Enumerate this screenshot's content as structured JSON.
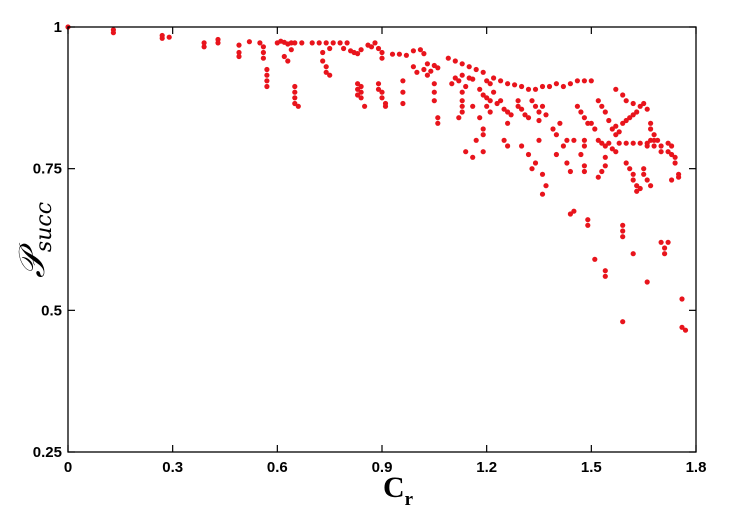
{
  "chart_data": {
    "type": "scatter",
    "title": "",
    "xlabel_main": "C",
    "xlabel_sub": "r",
    "ylabel_main": "𝒫",
    "ylabel_sub": "succ",
    "xlim": [
      0,
      1.8
    ],
    "ylim": [
      0.25,
      1
    ],
    "xticks": [
      "0",
      "0.3",
      "0.6",
      "0.9",
      "1.2",
      "1.5",
      "1.8"
    ],
    "yticks": [
      "0.25",
      "0.5",
      "0.75",
      "1"
    ],
    "marker_color": "#e8141c",
    "grid": false,
    "series": [
      {
        "points": [
          [
            0.0,
            1.0
          ],
          [
            0.13,
            0.995
          ],
          [
            0.13,
            0.99
          ],
          [
            0.27,
            0.985
          ],
          [
            0.27,
            0.98
          ],
          [
            0.29,
            0.982
          ],
          [
            0.39,
            0.972
          ],
          [
            0.39,
            0.965
          ],
          [
            0.43,
            0.978
          ],
          [
            0.43,
            0.972
          ],
          [
            0.49,
            0.968
          ],
          [
            0.49,
            0.955
          ],
          [
            0.49,
            0.948
          ],
          [
            0.52,
            0.974
          ],
          [
            0.55,
            0.972
          ],
          [
            0.56,
            0.965
          ],
          [
            0.56,
            0.955
          ],
          [
            0.56,
            0.945
          ],
          [
            0.57,
            0.925
          ],
          [
            0.57,
            0.915
          ],
          [
            0.57,
            0.905
          ],
          [
            0.57,
            0.895
          ],
          [
            0.6,
            0.972
          ],
          [
            0.61,
            0.975
          ],
          [
            0.62,
            0.973
          ],
          [
            0.63,
            0.97
          ],
          [
            0.64,
            0.972
          ],
          [
            0.65,
            0.972
          ],
          [
            0.62,
            0.948
          ],
          [
            0.63,
            0.94
          ],
          [
            0.64,
            0.96
          ],
          [
            0.65,
            0.895
          ],
          [
            0.65,
            0.885
          ],
          [
            0.65,
            0.875
          ],
          [
            0.65,
            0.865
          ],
          [
            0.66,
            0.86
          ],
          [
            0.67,
            0.972
          ],
          [
            0.7,
            0.972
          ],
          [
            0.72,
            0.972
          ],
          [
            0.74,
            0.972
          ],
          [
            0.76,
            0.972
          ],
          [
            0.78,
            0.972
          ],
          [
            0.8,
            0.972
          ],
          [
            0.73,
            0.955
          ],
          [
            0.73,
            0.94
          ],
          [
            0.74,
            0.93
          ],
          [
            0.74,
            0.92
          ],
          [
            0.75,
            0.915
          ],
          [
            0.75,
            0.962
          ],
          [
            0.79,
            0.962
          ],
          [
            0.81,
            0.958
          ],
          [
            0.82,
            0.955
          ],
          [
            0.83,
            0.953
          ],
          [
            0.84,
            0.96
          ],
          [
            0.83,
            0.9
          ],
          [
            0.83,
            0.89
          ],
          [
            0.83,
            0.88
          ],
          [
            0.84,
            0.895
          ],
          [
            0.84,
            0.885
          ],
          [
            0.84,
            0.875
          ],
          [
            0.85,
            0.86
          ],
          [
            0.86,
            0.968
          ],
          [
            0.87,
            0.965
          ],
          [
            0.88,
            0.972
          ],
          [
            0.89,
            0.962
          ],
          [
            0.9,
            0.955
          ],
          [
            0.9,
            0.945
          ],
          [
            0.89,
            0.9
          ],
          [
            0.89,
            0.89
          ],
          [
            0.9,
            0.885
          ],
          [
            0.9,
            0.875
          ],
          [
            0.91,
            0.865
          ],
          [
            0.91,
            0.86
          ],
          [
            0.93,
            0.952
          ],
          [
            0.95,
            0.952
          ],
          [
            0.97,
            0.95
          ],
          [
            0.99,
            0.958
          ],
          [
            1.01,
            0.96
          ],
          [
            1.02,
            0.953
          ],
          [
            0.96,
            0.905
          ],
          [
            0.96,
            0.885
          ],
          [
            0.96,
            0.865
          ],
          [
            0.99,
            0.93
          ],
          [
            1.0,
            0.92
          ],
          [
            1.02,
            0.925
          ],
          [
            1.03,
            0.935
          ],
          [
            1.03,
            0.915
          ],
          [
            1.04,
            0.922
          ],
          [
            1.05,
            0.932
          ],
          [
            1.06,
            0.928
          ],
          [
            1.05,
            0.9
          ],
          [
            1.05,
            0.885
          ],
          [
            1.05,
            0.87
          ],
          [
            1.06,
            0.84
          ],
          [
            1.06,
            0.83
          ],
          [
            1.09,
            0.945
          ],
          [
            1.11,
            0.94
          ],
          [
            1.13,
            0.935
          ],
          [
            1.15,
            0.93
          ],
          [
            1.17,
            0.925
          ],
          [
            1.19,
            0.92
          ],
          [
            1.1,
            0.9
          ],
          [
            1.11,
            0.91
          ],
          [
            1.12,
            0.905
          ],
          [
            1.13,
            0.915
          ],
          [
            1.14,
            0.895
          ],
          [
            1.15,
            0.91
          ],
          [
            1.16,
            0.908
          ],
          [
            1.13,
            0.885
          ],
          [
            1.13,
            0.87
          ],
          [
            1.13,
            0.86
          ],
          [
            1.13,
            0.85
          ],
          [
            1.12,
            0.84
          ],
          [
            1.18,
            0.89
          ],
          [
            1.19,
            0.88
          ],
          [
            1.2,
            0.875
          ],
          [
            1.21,
            0.87
          ],
          [
            1.22,
            0.885
          ],
          [
            1.23,
            0.865
          ],
          [
            1.2,
            0.905
          ],
          [
            1.21,
            0.9
          ],
          [
            1.2,
            0.86
          ],
          [
            1.21,
            0.85
          ],
          [
            1.19,
            0.82
          ],
          [
            1.19,
            0.81
          ],
          [
            1.22,
            0.91
          ],
          [
            1.24,
            0.905
          ],
          [
            1.26,
            0.9
          ],
          [
            1.28,
            0.898
          ],
          [
            1.3,
            0.895
          ],
          [
            1.32,
            0.89
          ],
          [
            1.34,
            0.89
          ],
          [
            1.24,
            0.87
          ],
          [
            1.25,
            0.855
          ],
          [
            1.26,
            0.85
          ],
          [
            1.27,
            0.845
          ],
          [
            1.26,
            0.83
          ],
          [
            1.25,
            0.8
          ],
          [
            1.26,
            0.79
          ],
          [
            1.17,
            0.8
          ],
          [
            1.19,
            0.78
          ],
          [
            1.14,
            0.78
          ],
          [
            1.16,
            0.77
          ],
          [
            1.18,
            0.84
          ],
          [
            1.16,
            0.86
          ],
          [
            1.29,
            0.87
          ],
          [
            1.29,
            0.86
          ],
          [
            1.3,
            0.855
          ],
          [
            1.31,
            0.845
          ],
          [
            1.32,
            0.84
          ],
          [
            1.33,
            0.87
          ],
          [
            1.34,
            0.86
          ],
          [
            1.35,
            0.85
          ],
          [
            1.35,
            0.835
          ],
          [
            1.36,
            0.86
          ],
          [
            1.37,
            0.845
          ],
          [
            1.36,
            0.895
          ],
          [
            1.38,
            0.895
          ],
          [
            1.4,
            0.9
          ],
          [
            1.42,
            0.895
          ],
          [
            1.44,
            0.9
          ],
          [
            1.46,
            0.905
          ],
          [
            1.48,
            0.905
          ],
          [
            1.5,
            0.905
          ],
          [
            1.3,
            0.79
          ],
          [
            1.32,
            0.775
          ],
          [
            1.35,
            0.8
          ],
          [
            1.34,
            0.76
          ],
          [
            1.33,
            0.75
          ],
          [
            1.36,
            0.74
          ],
          [
            1.37,
            0.72
          ],
          [
            1.36,
            0.705
          ],
          [
            1.39,
            0.82
          ],
          [
            1.4,
            0.81
          ],
          [
            1.41,
            0.83
          ],
          [
            1.42,
            0.79
          ],
          [
            1.43,
            0.8
          ],
          [
            1.45,
            0.8
          ],
          [
            1.4,
            0.775
          ],
          [
            1.43,
            0.76
          ],
          [
            1.44,
            0.745
          ],
          [
            1.44,
            0.67
          ],
          [
            1.45,
            0.675
          ],
          [
            1.46,
            0.86
          ],
          [
            1.47,
            0.85
          ],
          [
            1.48,
            0.84
          ],
          [
            1.49,
            0.83
          ],
          [
            1.5,
            0.83
          ],
          [
            1.51,
            0.82
          ],
          [
            1.48,
            0.8
          ],
          [
            1.48,
            0.79
          ],
          [
            1.47,
            0.775
          ],
          [
            1.48,
            0.755
          ],
          [
            1.48,
            0.745
          ],
          [
            1.49,
            0.66
          ],
          [
            1.49,
            0.65
          ],
          [
            1.52,
            0.87
          ],
          [
            1.53,
            0.86
          ],
          [
            1.54,
            0.85
          ],
          [
            1.55,
            0.835
          ],
          [
            1.56,
            0.82
          ],
          [
            1.57,
            0.81
          ],
          [
            1.52,
            0.8
          ],
          [
            1.53,
            0.795
          ],
          [
            1.54,
            0.79
          ],
          [
            1.55,
            0.795
          ],
          [
            1.56,
            0.785
          ],
          [
            1.57,
            0.78
          ],
          [
            1.54,
            0.77
          ],
          [
            1.54,
            0.755
          ],
          [
            1.53,
            0.745
          ],
          [
            1.52,
            0.735
          ],
          [
            1.57,
            0.825
          ],
          [
            1.58,
            0.815
          ],
          [
            1.59,
            0.83
          ],
          [
            1.6,
            0.835
          ],
          [
            1.61,
            0.84
          ],
          [
            1.62,
            0.845
          ],
          [
            1.63,
            0.85
          ],
          [
            1.58,
            0.795
          ],
          [
            1.6,
            0.795
          ],
          [
            1.62,
            0.795
          ],
          [
            1.64,
            0.795
          ],
          [
            1.66,
            0.795
          ],
          [
            1.68,
            0.79
          ],
          [
            1.7,
            0.79
          ],
          [
            1.57,
            0.89
          ],
          [
            1.59,
            0.88
          ],
          [
            1.6,
            0.87
          ],
          [
            1.62,
            0.865
          ],
          [
            1.64,
            0.86
          ],
          [
            1.65,
            0.865
          ],
          [
            1.66,
            0.855
          ],
          [
            1.6,
            0.76
          ],
          [
            1.61,
            0.75
          ],
          [
            1.62,
            0.74
          ],
          [
            1.62,
            0.73
          ],
          [
            1.63,
            0.72
          ],
          [
            1.63,
            0.71
          ],
          [
            1.64,
            0.715
          ],
          [
            1.65,
            0.75
          ],
          [
            1.65,
            0.74
          ],
          [
            1.66,
            0.73
          ],
          [
            1.67,
            0.72
          ],
          [
            1.66,
            0.79
          ],
          [
            1.67,
            0.8
          ],
          [
            1.67,
            0.82
          ],
          [
            1.67,
            0.83
          ],
          [
            1.68,
            0.81
          ],
          [
            1.68,
            0.8
          ],
          [
            1.69,
            0.8
          ],
          [
            1.7,
            0.78
          ],
          [
            1.72,
            0.795
          ],
          [
            1.73,
            0.79
          ],
          [
            1.72,
            0.78
          ],
          [
            1.73,
            0.775
          ],
          [
            1.74,
            0.77
          ],
          [
            1.74,
            0.76
          ],
          [
            1.75,
            0.74
          ],
          [
            1.75,
            0.735
          ],
          [
            1.73,
            0.73
          ],
          [
            1.51,
            0.59
          ],
          [
            1.54,
            0.57
          ],
          [
            1.54,
            0.56
          ],
          [
            1.59,
            0.65
          ],
          [
            1.59,
            0.64
          ],
          [
            1.59,
            0.63
          ],
          [
            1.59,
            0.48
          ],
          [
            1.62,
            0.6
          ],
          [
            1.66,
            0.55
          ],
          [
            1.7,
            0.62
          ],
          [
            1.71,
            0.61
          ],
          [
            1.71,
            0.6
          ],
          [
            1.72,
            0.62
          ],
          [
            1.76,
            0.52
          ],
          [
            1.76,
            0.47
          ],
          [
            1.77,
            0.465
          ]
        ]
      }
    ]
  }
}
